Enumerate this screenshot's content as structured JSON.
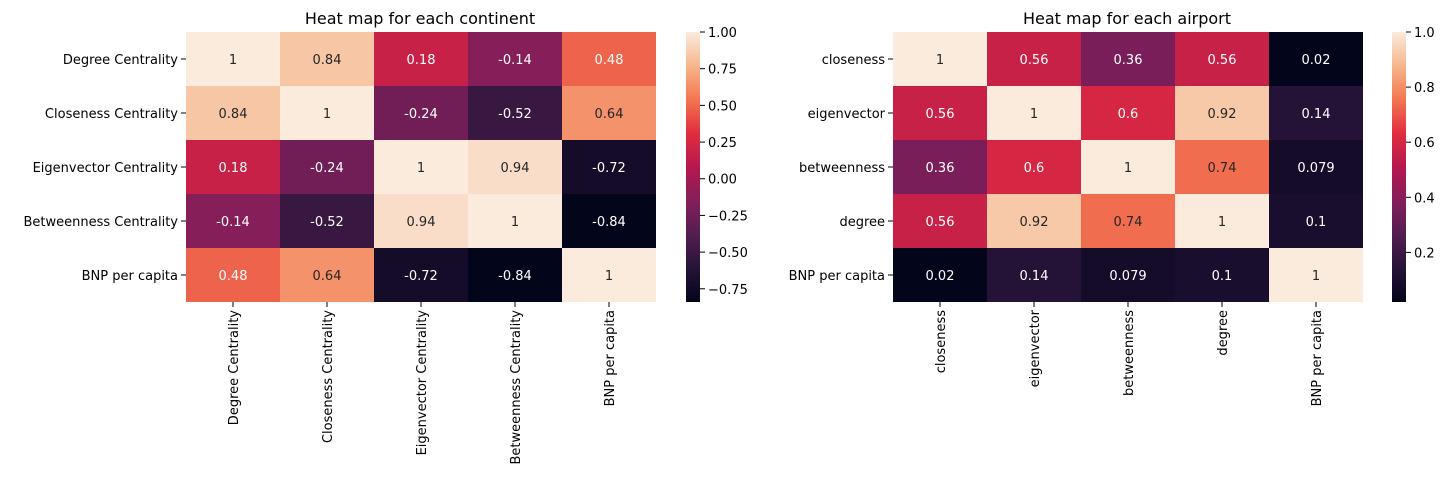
{
  "chart_data": [
    {
      "type": "heatmap",
      "title": "Heat map for each continent",
      "row_labels": [
        "Degree Centrality",
        "Closeness Centrality",
        "Eigenvector Centrality",
        "Betweenness Centrality",
        "BNP per capita"
      ],
      "col_labels": [
        "Degree Centrality",
        "Closeness Centrality",
        "Eigenvector Centrality",
        "Betweenness Centrality",
        "BNP per capita"
      ],
      "values": [
        [
          1,
          0.84,
          0.18,
          -0.14,
          0.48
        ],
        [
          0.84,
          1,
          -0.24,
          -0.52,
          0.64
        ],
        [
          0.18,
          -0.24,
          1,
          0.94,
          -0.72
        ],
        [
          -0.14,
          -0.52,
          0.94,
          1,
          -0.84
        ],
        [
          0.48,
          0.64,
          -0.72,
          -0.84,
          1
        ]
      ],
      "annotations": [
        [
          "1",
          "0.84",
          "0.18",
          "-0.14",
          "0.48"
        ],
        [
          "0.84",
          "1",
          "-0.24",
          "-0.52",
          "0.64"
        ],
        [
          "0.18",
          "-0.24",
          "1",
          "0.94",
          "-0.72"
        ],
        [
          "-0.14",
          "-0.52",
          "0.94",
          "1",
          "-0.84"
        ],
        [
          "0.48",
          "0.64",
          "-0.72",
          "-0.84",
          "1"
        ]
      ],
      "colorbar": {
        "min": -0.84,
        "max": 1,
        "ticks": [
          1.0,
          0.75,
          0.5,
          0.25,
          0.0,
          -0.25,
          -0.5,
          -0.75
        ],
        "tick_labels": [
          "1.00",
          "0.75",
          "0.50",
          "0.25",
          "0.00",
          "−0.25",
          "−0.50",
          "−0.75"
        ]
      },
      "colormap": "rocket"
    },
    {
      "type": "heatmap",
      "title": "Heat map for each airport",
      "row_labels": [
        "closeness",
        "eigenvector",
        "betweenness",
        "degree",
        "BNP per capita"
      ],
      "col_labels": [
        "closeness",
        "eigenvector",
        "betweenness",
        "degree",
        "BNP per capita"
      ],
      "values": [
        [
          1,
          0.56,
          0.36,
          0.56,
          0.02
        ],
        [
          0.56,
          1,
          0.6,
          0.92,
          0.14
        ],
        [
          0.36,
          0.6,
          1,
          0.74,
          0.079
        ],
        [
          0.56,
          0.92,
          0.74,
          1,
          0.1
        ],
        [
          0.02,
          0.14,
          0.079,
          0.1,
          1
        ]
      ],
      "annotations": [
        [
          "1",
          "0.56",
          "0.36",
          "0.56",
          "0.02"
        ],
        [
          "0.56",
          "1",
          "0.6",
          "0.92",
          "0.14"
        ],
        [
          "0.36",
          "0.6",
          "1",
          "0.74",
          "0.079"
        ],
        [
          "0.56",
          "0.92",
          "0.74",
          "1",
          "0.1"
        ],
        [
          "0.02",
          "0.14",
          "0.079",
          "0.1",
          "1"
        ]
      ],
      "colorbar": {
        "min": 0.02,
        "max": 1,
        "ticks": [
          1.0,
          0.8,
          0.6,
          0.4,
          0.2
        ],
        "tick_labels": [
          "1.0",
          "0.8",
          "0.6",
          "0.4",
          "0.2"
        ]
      },
      "colormap": "rocket"
    }
  ]
}
